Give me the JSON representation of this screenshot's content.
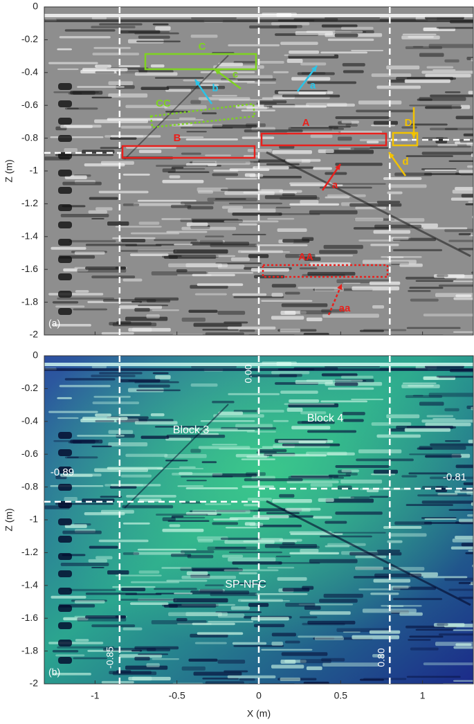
{
  "chart_data": [
    {
      "type": "image",
      "panel_label": "(a)",
      "ylabel": "Z (m)",
      "xlim": [
        -1.31,
        1.31
      ],
      "ylim": [
        -2,
        0
      ],
      "xticks": [
        -1,
        -0.5,
        0,
        0.5,
        1
      ],
      "yticks": [
        0,
        -0.2,
        -0.4,
        -0.6,
        -0.8,
        -1,
        -1.2,
        -1.4,
        -1.6,
        -1.8,
        -2
      ],
      "vlines": [
        -0.85,
        0,
        0.8
      ],
      "hlines": [
        -0.89,
        -0.81
      ],
      "annotations": [
        {
          "text": "C",
          "color": "#7ed321"
        },
        {
          "text": "c",
          "color": "#7ed321"
        },
        {
          "text": "b",
          "color": "#29c4e8"
        },
        {
          "text": "a",
          "color": "#29c4e8"
        },
        {
          "text": "CC",
          "color": "#7ed321"
        },
        {
          "text": "D",
          "color": "#f2c200"
        },
        {
          "text": "A",
          "color": "#e8201c"
        },
        {
          "text": "B",
          "color": "#e8201c"
        },
        {
          "text": "d",
          "color": "#f2c200"
        },
        {
          "text": "a",
          "color": "#e8201c"
        },
        {
          "text": "AA",
          "color": "#e8201c"
        },
        {
          "text": "aa",
          "color": "#e8201c"
        }
      ]
    },
    {
      "type": "image",
      "panel_label": "(b)",
      "ylabel": "Z (m)",
      "xlabel": "X (m)",
      "xlim": [
        -1.31,
        1.31
      ],
      "ylim": [
        -2,
        0
      ],
      "xticks": [
        -1,
        -0.5,
        0,
        0.5,
        1
      ],
      "yticks": [
        0,
        -0.2,
        -0.4,
        -0.6,
        -0.8,
        -1,
        -1.2,
        -1.4,
        -1.6,
        -1.8,
        -2
      ],
      "vlines": [
        -0.85,
        {
          "value": 0,
          "label": "0.00"
        },
        {
          "value": 0.8,
          "label": "0.80"
        }
      ],
      "hlines": [
        -0.89,
        -0.81
      ],
      "annotations": [
        {
          "text": "Block 3",
          "color": "#ffffff"
        },
        {
          "text": "Block 4",
          "color": "#ffffff"
        },
        {
          "text": "SP-NFC",
          "color": "#ffffff"
        }
      ]
    }
  ]
}
